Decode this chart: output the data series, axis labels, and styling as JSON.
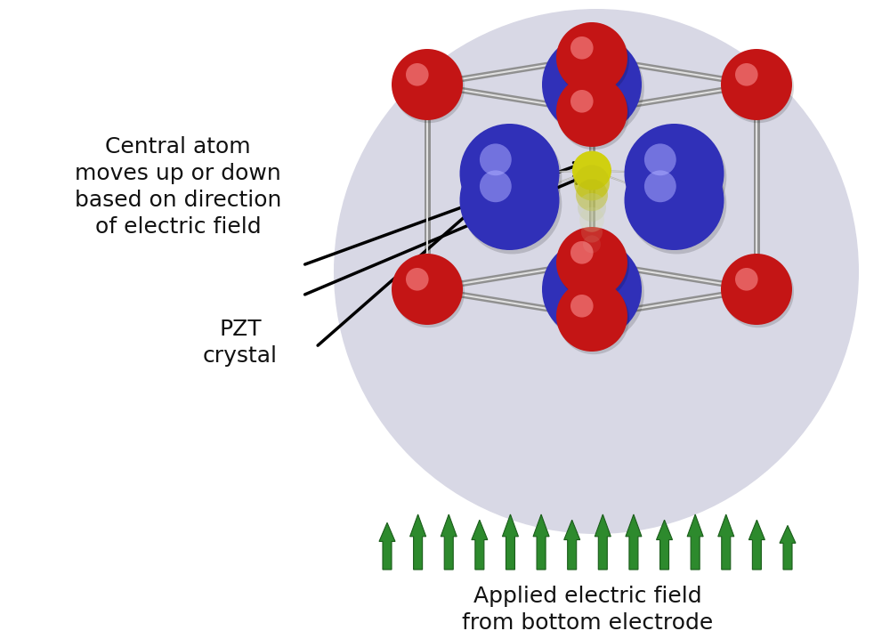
{
  "background_color": "#ffffff",
  "circle_bg_color": "#d8d8e5",
  "text_color": "#111111",
  "arrow_color": "#2d8a2d",
  "arrow_edge_color": "#1a5c1a",
  "red_color": "#c41515",
  "blue_color": "#3030b8",
  "yellow_color": "#d8d820",
  "frame_color": "#aaaaaa",
  "bond_color": "#b0b0b0",
  "figsize": [
    10.0,
    7.18
  ],
  "dpi": 100,
  "label_central_atom": "Central atom\nmoves up or down\nbased on direction\nof electric field",
  "label_pzt": "PZT\ncrystal",
  "label_field": "Applied electric field\nfrom bottom electrode"
}
